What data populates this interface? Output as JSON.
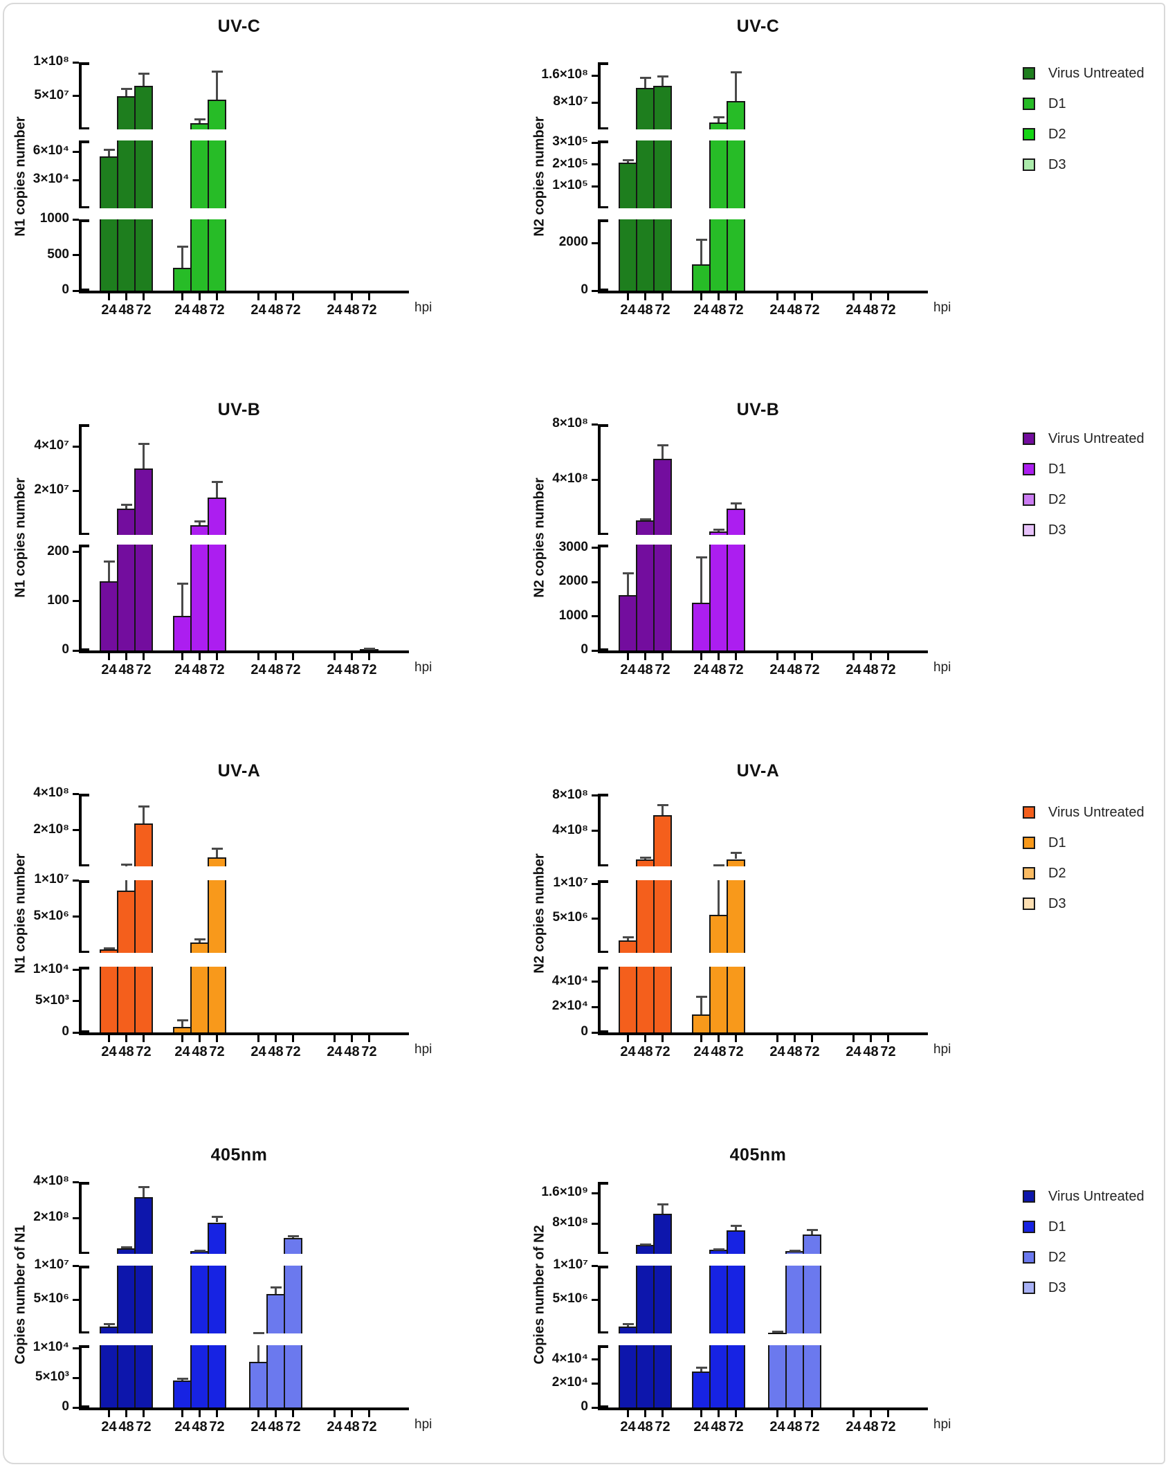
{
  "figure": {
    "x_axis_unit": "hpi"
  },
  "legend": {
    "labels": [
      "Virus Untreated",
      "D1",
      "D2",
      "D3"
    ]
  },
  "chart_meta": {
    "type": "bar",
    "grid": false,
    "error_bars": true,
    "axis_style": "segmented-broken-y"
  },
  "rows": [
    {
      "treatment": "UV-C",
      "palette": [
        "#1E7E1E",
        "#27BC27",
        "#14D414",
        "#ABEBAB"
      ],
      "charts": [
        {
          "title": "UV-C",
          "ylabel": "N1 copies number",
          "x_categories": [
            "24",
            "48",
            "72"
          ],
          "segments": [
            {
              "hi": 1000,
              "ticks": [
                {
                  "v": 0,
                  "label": "0"
                },
                {
                  "v": 500,
                  "label": "500"
                },
                {
                  "v": 1000,
                  "label": "1000"
                }
              ]
            },
            {
              "hi": 72000,
              "ticks": [
                {
                  "v": 30000,
                  "label": "3×10⁴"
                },
                {
                  "v": 60000,
                  "label": "6×10⁴"
                }
              ]
            },
            {
              "hi": 100000000.0,
              "ticks": [
                {
                  "v": 50000000.0,
                  "label": "5×10⁷"
                },
                {
                  "v": 100000000.0,
                  "label": "1×10⁸"
                }
              ]
            }
          ],
          "series": [
            {
              "name": "Virus Untreated",
              "values": [
                55000,
                49000000.0,
                65000000.0
              ],
              "err_top": [
                62000,
                60000000.0,
                83000000.0
              ]
            },
            {
              "name": "D1",
              "values": [
                320,
                9000000.0,
                44000000.0
              ],
              "err_top": [
                620,
                15000000.0,
                86000000.0
              ]
            },
            {
              "name": "D2",
              "values": [
                0,
                0,
                0
              ],
              "err_top": [
                0,
                0,
                0
              ]
            },
            {
              "name": "D3",
              "values": [
                0,
                0,
                0
              ],
              "err_top": [
                0,
                0,
                0
              ]
            }
          ]
        },
        {
          "title": "UV-C",
          "ylabel": "N2 copies number",
          "x_categories": [
            "24",
            "48",
            "72"
          ],
          "segments": [
            {
              "hi": 3000,
              "ticks": [
                {
                  "v": 0,
                  "label": "0"
                },
                {
                  "v": 2000,
                  "label": "2000"
                }
              ]
            },
            {
              "hi": 310000.0,
              "ticks": [
                {
                  "v": 100000.0,
                  "label": "1×10⁵"
                },
                {
                  "v": 200000.0,
                  "label": "2×10⁵"
                },
                {
                  "v": 300000.0,
                  "label": "3×10⁵"
                }
              ]
            },
            {
              "hi": 200000000.0,
              "ticks": [
                {
                  "v": 80000000.0,
                  "label": "8×10⁷"
                },
                {
                  "v": 160000000.0,
                  "label": "1.6×10⁸"
                }
              ]
            }
          ],
          "series": [
            {
              "name": "Virus Untreated",
              "values": [
                210000.0,
                123000000.0,
                129000000.0
              ],
              "err_top": [
                220000.0,
                153000000.0,
                157000000.0
              ]
            },
            {
              "name": "D1",
              "values": [
                1100,
                20000000.0,
                85000000.0
              ],
              "err_top": [
                2150,
                37000000.0,
                170000000.0
              ]
            },
            {
              "name": "D2",
              "values": [
                0,
                0,
                0
              ],
              "err_top": [
                0,
                0,
                0
              ]
            },
            {
              "name": "D3",
              "values": [
                0,
                0,
                0
              ],
              "err_top": [
                0,
                0,
                0
              ]
            }
          ]
        }
      ]
    },
    {
      "treatment": "UV-B",
      "palette": [
        "#730D9E",
        "#AC1EF0",
        "#CB7CF2",
        "#E7C2FA"
      ],
      "charts": [
        {
          "title": "UV-B",
          "ylabel": "N1 copies number",
          "x_categories": [
            "24",
            "48",
            "72"
          ],
          "segments": [
            {
              "hi": 215,
              "ticks": [
                {
                  "v": 0,
                  "label": "0"
                },
                {
                  "v": 100,
                  "label": "100"
                },
                {
                  "v": 200,
                  "label": "200"
                }
              ]
            },
            {
              "hi": 50000000.0,
              "ticks": [
                {
                  "v": 20000000.0,
                  "label": "2×10⁷"
                },
                {
                  "v": 40000000.0,
                  "label": "4×10⁷"
                }
              ]
            }
          ],
          "series": [
            {
              "name": "Virus Untreated",
              "values": [
                140,
                12000000.0,
                30000000.0
              ],
              "err_top": [
                180,
                13500000.0,
                41000000.0
              ]
            },
            {
              "name": "D1",
              "values": [
                70,
                4500000.0,
                17000000.0
              ],
              "err_top": [
                135,
                6000000.0,
                24000000.0
              ]
            },
            {
              "name": "D2",
              "values": [
                0,
                0,
                0
              ],
              "err_top": [
                0,
                0,
                0
              ]
            },
            {
              "name": "D3",
              "values": [
                0,
                0,
                3
              ],
              "err_top": [
                0,
                0,
                4
              ]
            }
          ]
        },
        {
          "title": "UV-B",
          "ylabel": "N2 copies number",
          "x_categories": [
            "24",
            "48",
            "72"
          ],
          "segments": [
            {
              "hi": 3100,
              "ticks": [
                {
                  "v": 0,
                  "label": "0"
                },
                {
                  "v": 1000,
                  "label": "1000"
                },
                {
                  "v": 2000,
                  "label": "2000"
                },
                {
                  "v": 3000,
                  "label": "3000"
                }
              ]
            },
            {
              "hi": 800000000.0,
              "ticks": [
                {
                  "v": 400000000.0,
                  "label": "4×10⁸"
                },
                {
                  "v": 800000000.0,
                  "label": "8×10⁸"
                }
              ]
            }
          ],
          "series": [
            {
              "name": "Virus Untreated",
              "values": [
                1630,
                105000000.0,
                550000000.0
              ],
              "err_top": [
                2250,
                115000000.0,
                650000000.0
              ]
            },
            {
              "name": "D1",
              "values": [
                1400,
                26000000.0,
                190000000.0
              ],
              "err_top": [
                2730,
                40000000.0,
                230000000.0
              ]
            },
            {
              "name": "D2",
              "values": [
                0,
                0,
                0
              ],
              "err_top": [
                0,
                0,
                0
              ]
            },
            {
              "name": "D3",
              "values": [
                0,
                0,
                0
              ],
              "err_top": [
                0,
                0,
                0
              ]
            }
          ]
        }
      ]
    },
    {
      "treatment": "UV-A",
      "palette": [
        "#F45F1C",
        "#F8991B",
        "#FABB63",
        "#FCDFB2"
      ],
      "charts": [
        {
          "title": "UV-A",
          "ylabel": "N1 copies number",
          "x_categories": [
            "24",
            "48",
            "72"
          ],
          "segments": [
            {
              "hi": 10500.0,
              "ticks": [
                {
                  "v": 0,
                  "label": "0"
                },
                {
                  "v": 5000.0,
                  "label": "5×10³"
                },
                {
                  "v": 10000.0,
                  "label": "1×10⁴"
                }
              ]
            },
            {
              "hi": 10000000.0,
              "ticks": [
                {
                  "v": 5000000.0,
                  "label": "5×10⁶"
                },
                {
                  "v": 10000000.0,
                  "label": "1×10⁷"
                }
              ]
            },
            {
              "hi": 400000000.0,
              "ticks": [
                {
                  "v": 200000000.0,
                  "label": "2×10⁸"
                },
                {
                  "v": 400000000.0,
                  "label": "4×10⁸"
                }
              ]
            }
          ],
          "series": [
            {
              "name": "Virus Untreated",
              "values": [
                500000.0,
                8600000.0,
                235000000.0
              ],
              "err_top": [
                650000.0,
                10500000.0,
                330000000.0
              ]
            },
            {
              "name": "D1",
              "values": [
                900,
                1400000.0,
                50000000.0
              ],
              "err_top": [
                1900,
                1900000.0,
                96000000.0
              ]
            },
            {
              "name": "D2",
              "values": [
                0,
                0,
                0
              ],
              "err_top": [
                0,
                0,
                0
              ]
            },
            {
              "name": "D3",
              "values": [
                0,
                0,
                0
              ],
              "err_top": [
                0,
                0,
                0
              ]
            }
          ]
        },
        {
          "title": "UV-A",
          "ylabel": "N2 copies number",
          "x_categories": [
            "24",
            "48",
            "72"
          ],
          "segments": [
            {
              "hi": 52000.0,
              "ticks": [
                {
                  "v": 0,
                  "label": "0"
                },
                {
                  "v": 20000.0,
                  "label": "2×10⁴"
                },
                {
                  "v": 40000.0,
                  "label": "4×10⁴"
                }
              ]
            },
            {
              "hi": 10500000.0,
              "ticks": [
                {
                  "v": 5000000.0,
                  "label": "5×10⁶"
                },
                {
                  "v": 10000000.0,
                  "label": "1×10⁷"
                }
              ]
            },
            {
              "hi": 820000000.0,
              "ticks": [
                {
                  "v": 400000000.0,
                  "label": "4×10⁸"
                },
                {
                  "v": 800000000.0,
                  "label": "8×10⁸"
                }
              ]
            }
          ],
          "series": [
            {
              "name": "Virus Untreated",
              "values": [
                1800000.0,
                75000000.0,
                580000000.0
              ],
              "err_top": [
                2300000.0,
                100000000.0,
                690000000.0
              ]
            },
            {
              "name": "D1",
              "values": [
                14000.0,
                5500000.0,
                82000000.0
              ],
              "err_top": [
                28000.0,
                12000000.0,
                150000000.0
              ]
            },
            {
              "name": "D2",
              "values": [
                0,
                0,
                0
              ],
              "err_top": [
                0,
                0,
                0
              ]
            },
            {
              "name": "D3",
              "values": [
                0,
                0,
                0
              ],
              "err_top": [
                0,
                0,
                0
              ]
            }
          ]
        }
      ]
    },
    {
      "treatment": "405nm",
      "palette": [
        "#0D16AC",
        "#1723E3",
        "#6B79EE",
        "#A8B1F5"
      ],
      "charts": [
        {
          "title": "405nm",
          "ylabel": "Copies number of N1",
          "x_categories": [
            "24",
            "48",
            "72"
          ],
          "segments": [
            {
              "hi": 10500.0,
              "ticks": [
                {
                  "v": 0,
                  "label": "0"
                },
                {
                  "v": 5000.0,
                  "label": "5×10³"
                },
                {
                  "v": 10000.0,
                  "label": "1×10⁴"
                }
              ]
            },
            {
              "hi": 10000000.0,
              "ticks": [
                {
                  "v": 5000000.0,
                  "label": "5×10⁶"
                },
                {
                  "v": 10000000.0,
                  "label": "1×10⁷"
                }
              ]
            },
            {
              "hi": 400000000.0,
              "ticks": [
                {
                  "v": 200000000.0,
                  "label": "2×10⁸"
                },
                {
                  "v": 400000000.0,
                  "label": "4×10⁸"
                }
              ]
            }
          ],
          "series": [
            {
              "name": "Virus Untreated",
              "values": [
                1050000.0,
                30000000.0,
                315000000.0
              ],
              "err_top": [
                1350000.0,
                35000000.0,
                370000000.0
              ]
            },
            {
              "name": "D1",
              "values": [
                4600,
                16000000.0,
                175000000.0
              ],
              "err_top": [
                4900,
                18000000.0,
                205000000.0
              ]
            },
            {
              "name": "D2",
              "values": [
                7700,
                5800000.0,
                90000000.0
              ],
              "err_top": [
                11500.0,
                6800000.0,
                100000000.0
              ]
            },
            {
              "name": "D3",
              "values": [
                0,
                0,
                0
              ],
              "err_top": [
                0,
                0,
                0
              ]
            }
          ]
        },
        {
          "title": "405nm",
          "ylabel": "Copies number of N2",
          "x_categories": [
            "24",
            "48",
            "72"
          ],
          "segments": [
            {
              "hi": 52000.0,
              "ticks": [
                {
                  "v": 0,
                  "label": "0"
                },
                {
                  "v": 20000.0,
                  "label": "2×10⁴"
                },
                {
                  "v": 40000.0,
                  "label": "4×10⁴"
                }
              ]
            },
            {
              "hi": 10000000.0,
              "ticks": [
                {
                  "v": 5000000.0,
                  "label": "5×10⁶"
                },
                {
                  "v": 10000000.0,
                  "label": "1×10⁷"
                }
              ]
            },
            {
              "hi": 1900000000.0,
              "ticks": [
                {
                  "v": 800000000.0,
                  "label": "8×10⁸"
                },
                {
                  "v": 1600000000.0,
                  "label": "1.6×10⁹"
                }
              ]
            }
          ],
          "series": [
            {
              "name": "Virus Untreated",
              "values": [
                1050000.0,
                230000000.0,
                1060000000.0
              ],
              "err_top": [
                1350000.0,
                250000000.0,
                1300000000.0
              ]
            },
            {
              "name": "D1",
              "values": [
                30000.0,
                110000000.0,
                620000000.0
              ],
              "err_top": [
                33000.0,
                120000000.0,
                740000000.0
              ]
            },
            {
              "name": "D2",
              "values": [
                60000.0,
                75000000.0,
                520000000.0
              ],
              "err_top": [
                300000.0,
                85000000.0,
                630000000.0
              ]
            },
            {
              "name": "D3",
              "values": [
                0,
                0,
                0
              ],
              "err_top": [
                0,
                0,
                0
              ]
            }
          ]
        }
      ]
    }
  ]
}
